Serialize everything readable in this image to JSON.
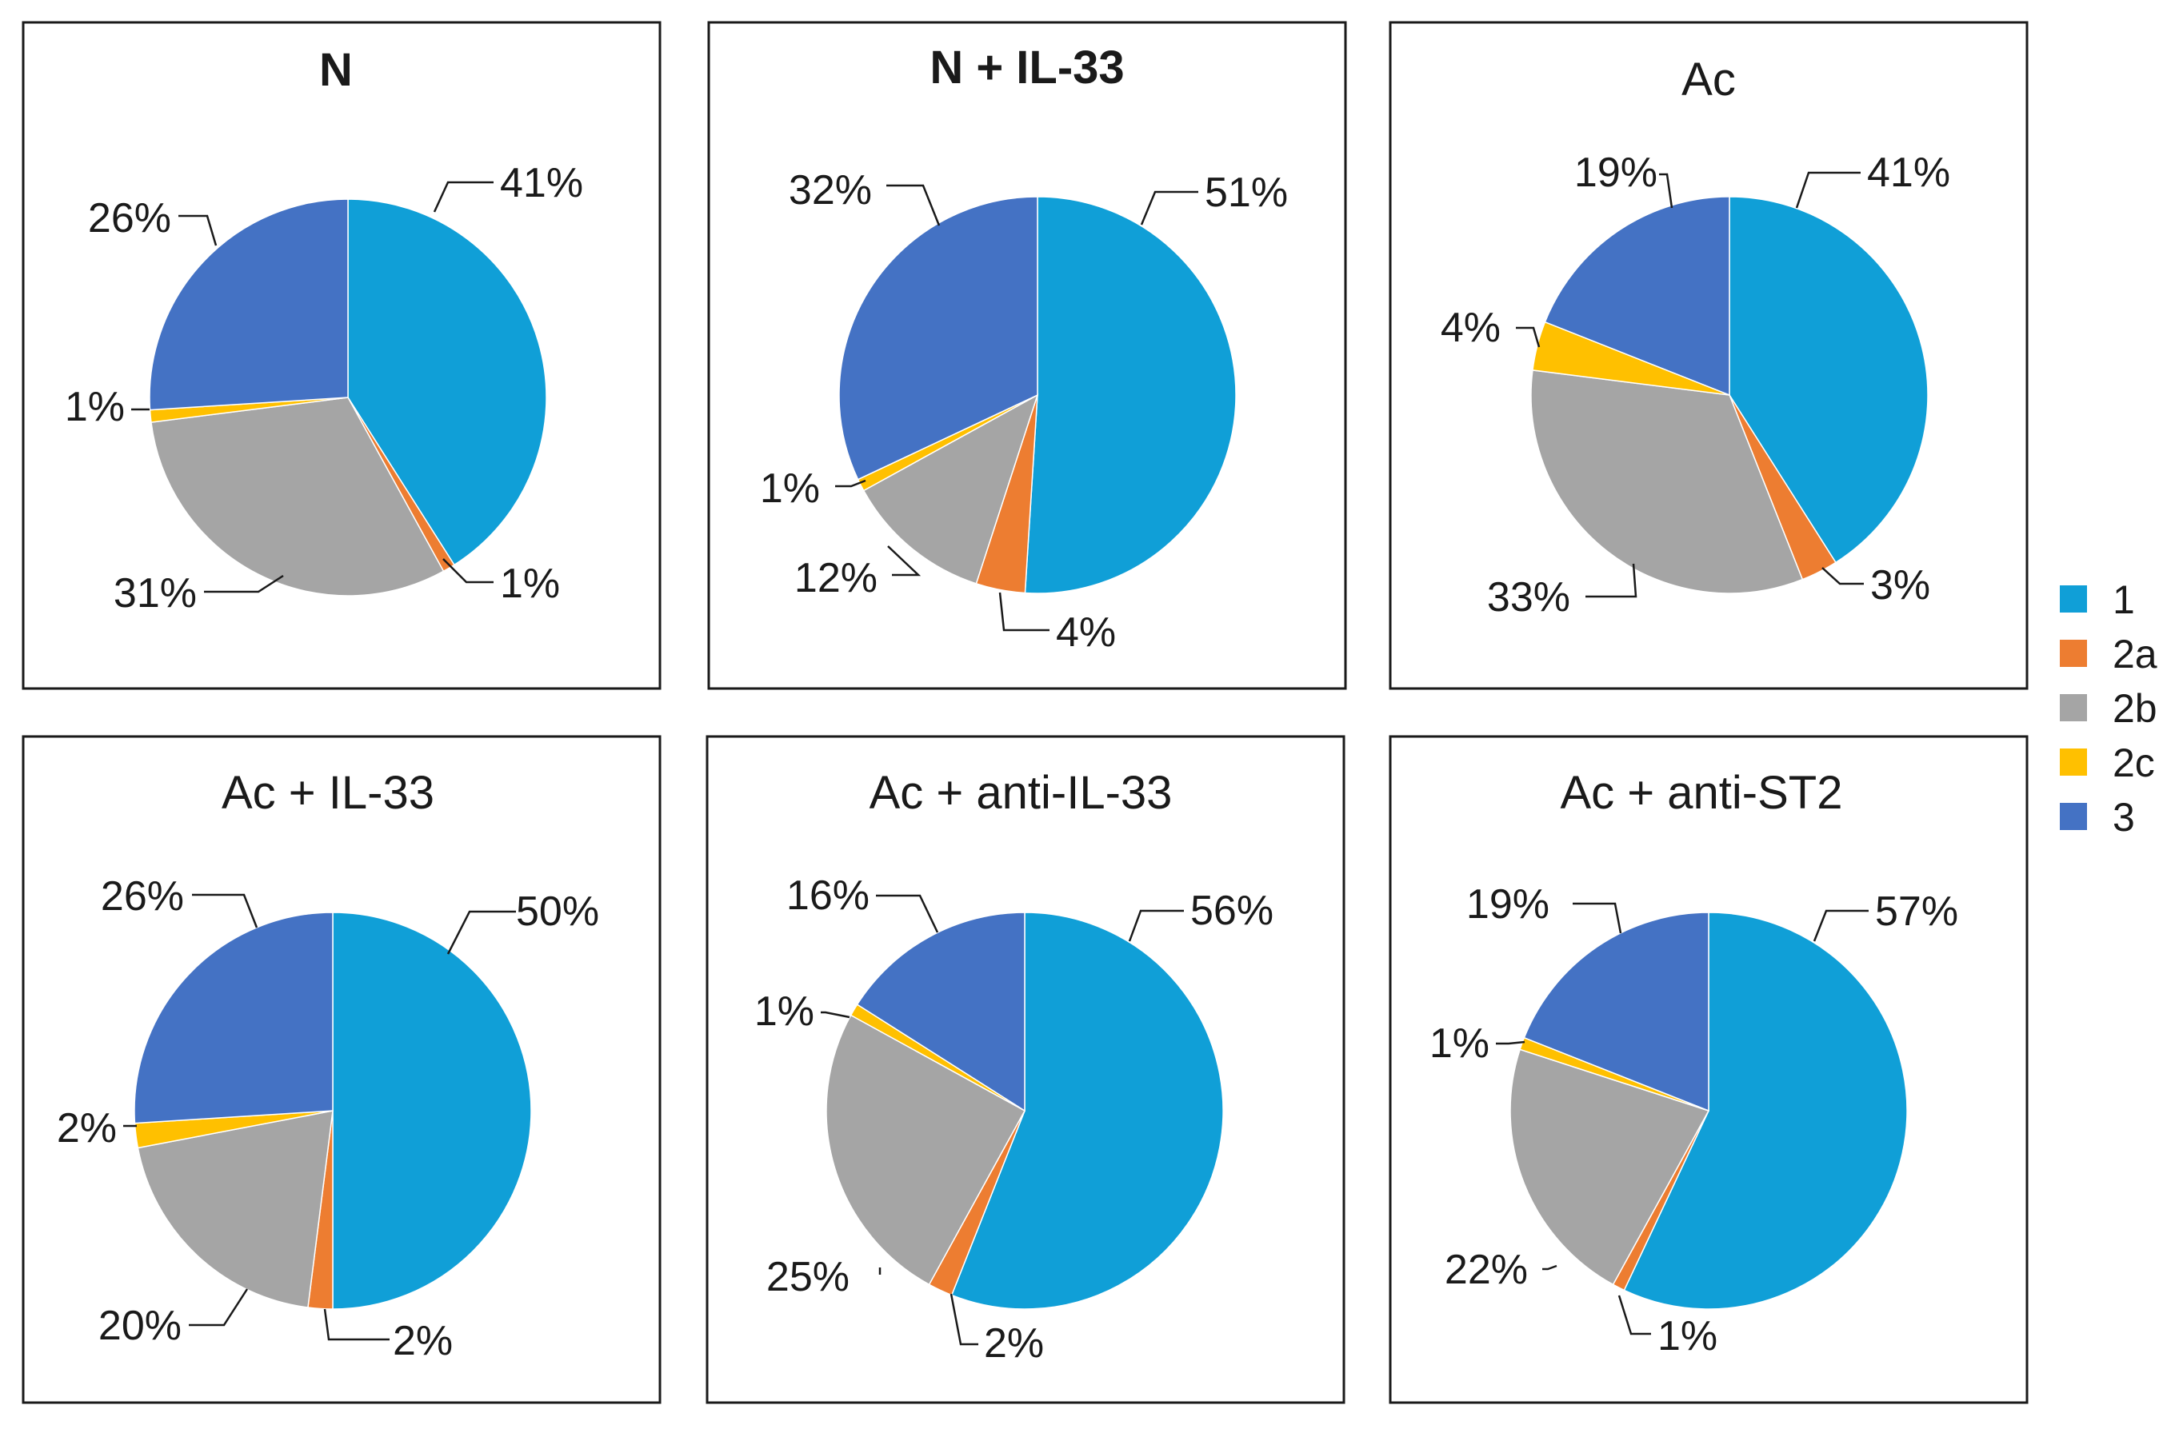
{
  "chart_data": [
    {
      "type": "pie",
      "title": "N",
      "categories": [
        "1",
        "2a",
        "2b",
        "2c",
        "3"
      ],
      "values": [
        41,
        1,
        31,
        1,
        26
      ],
      "labels": [
        "41%",
        "1%",
        "31%",
        "1%",
        "26%"
      ]
    },
    {
      "type": "pie",
      "title": "N + IL-33",
      "categories": [
        "1",
        "2a",
        "2b",
        "2c",
        "3"
      ],
      "values": [
        51,
        4,
        12,
        1,
        32
      ],
      "labels": [
        "51%",
        "4%",
        "12%",
        "1%",
        "32%"
      ]
    },
    {
      "type": "pie",
      "title": "Ac",
      "categories": [
        "1",
        "2a",
        "2b",
        "2c",
        "3"
      ],
      "values": [
        41,
        3,
        33,
        4,
        19
      ],
      "labels": [
        "41%",
        "3%",
        "33%",
        "4%",
        "19%"
      ]
    },
    {
      "type": "pie",
      "title": "Ac + IL-33",
      "categories": [
        "1",
        "2a",
        "2b",
        "2c",
        "3"
      ],
      "values": [
        50,
        2,
        20,
        2,
        26
      ],
      "labels": [
        "50%",
        "2%",
        "20%",
        "2%",
        "26%"
      ]
    },
    {
      "type": "pie",
      "title": "Ac + anti-IL-33",
      "categories": [
        "1",
        "2a",
        "2b",
        "2c",
        "3"
      ],
      "values": [
        56,
        2,
        25,
        1,
        16
      ],
      "labels": [
        "56%",
        "2%",
        "25%",
        "1%",
        "16%"
      ]
    },
    {
      "type": "pie",
      "title": "Ac + anti-ST2",
      "categories": [
        "1",
        "2a",
        "2b",
        "2c",
        "3"
      ],
      "values": [
        57,
        1,
        22,
        1,
        19
      ],
      "labels": [
        "57%",
        "1%",
        "22%",
        "1%",
        "19%"
      ]
    }
  ],
  "legend": [
    {
      "label": "1",
      "color": "#109fd7"
    },
    {
      "label": "2a",
      "color": "#ed7d31"
    },
    {
      "label": "2b",
      "color": "#a5a5a5"
    },
    {
      "label": "2c",
      "color": "#ffc000"
    },
    {
      "label": "3",
      "color": "#4472c4"
    }
  ],
  "colors": [
    "#109fd7",
    "#ed7d31",
    "#a5a5a5",
    "#ffc000",
    "#4472c4"
  ]
}
